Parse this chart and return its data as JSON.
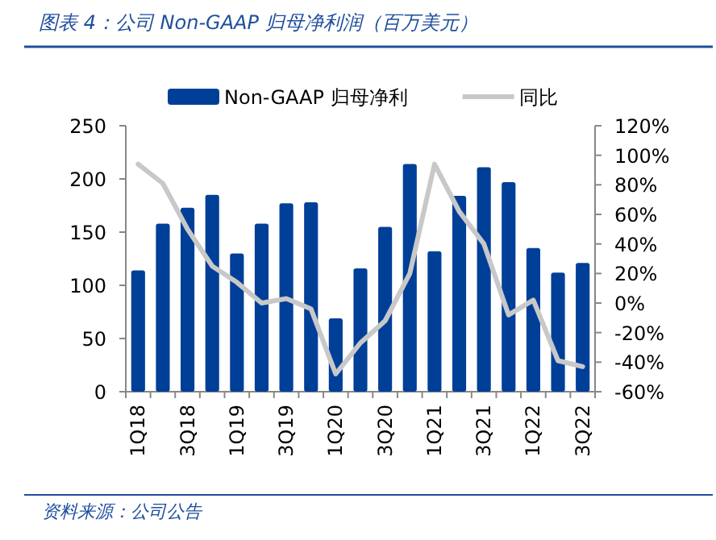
{
  "chart_data": {
    "type": "bar",
    "title": "图表 4：公司 Non-GAAP 归母净利润（百万美元）",
    "annotations": [
      "资料来源：公司公告"
    ],
    "categories": [
      "1Q18",
      null,
      "3Q18",
      null,
      "1Q19",
      null,
      "3Q19",
      null,
      "1Q20",
      null,
      "3Q20",
      null,
      "1Q21",
      null,
      "3Q21",
      null,
      "1Q22",
      null,
      "3Q22"
    ],
    "series": [
      {
        "name": "Non-GAAP 归母净利",
        "color": "#003f98",
        "values": [
          114,
          158,
          173,
          185,
          130,
          158,
          177,
          178,
          69,
          116,
          155,
          214,
          132,
          184,
          211,
          197,
          135,
          112,
          121
        ]
      },
      {
        "name": "同比",
        "type": "line",
        "axis": "y2",
        "color": "#c8c8c8",
        "values": [
          94,
          81,
          50,
          25,
          14,
          0,
          3,
          -4,
          -48,
          -27,
          -12,
          20,
          94,
          62,
          40,
          -8,
          2,
          -39,
          -43
        ]
      }
    ],
    "ylim": [
      0,
      250
    ],
    "yticks": [
      0,
      50,
      100,
      150,
      200,
      250
    ],
    "y2lim": [
      -60,
      120
    ],
    "y2ticks": [
      {
        "value": -60,
        "label": "-60%"
      },
      {
        "value": -40,
        "label": "-40%"
      },
      {
        "value": -20,
        "label": "-20%"
      },
      {
        "value": 0,
        "label": "0%"
      },
      {
        "value": 20,
        "label": "20%"
      },
      {
        "value": 40,
        "label": "40%"
      },
      {
        "value": 60,
        "label": "60%"
      },
      {
        "value": 80,
        "label": "80%"
      },
      {
        "value": 100,
        "label": "100%"
      },
      {
        "value": 120,
        "label": "120%"
      }
    ],
    "legend": "top",
    "grid": false,
    "marker": "none",
    "line_style": "solid"
  }
}
